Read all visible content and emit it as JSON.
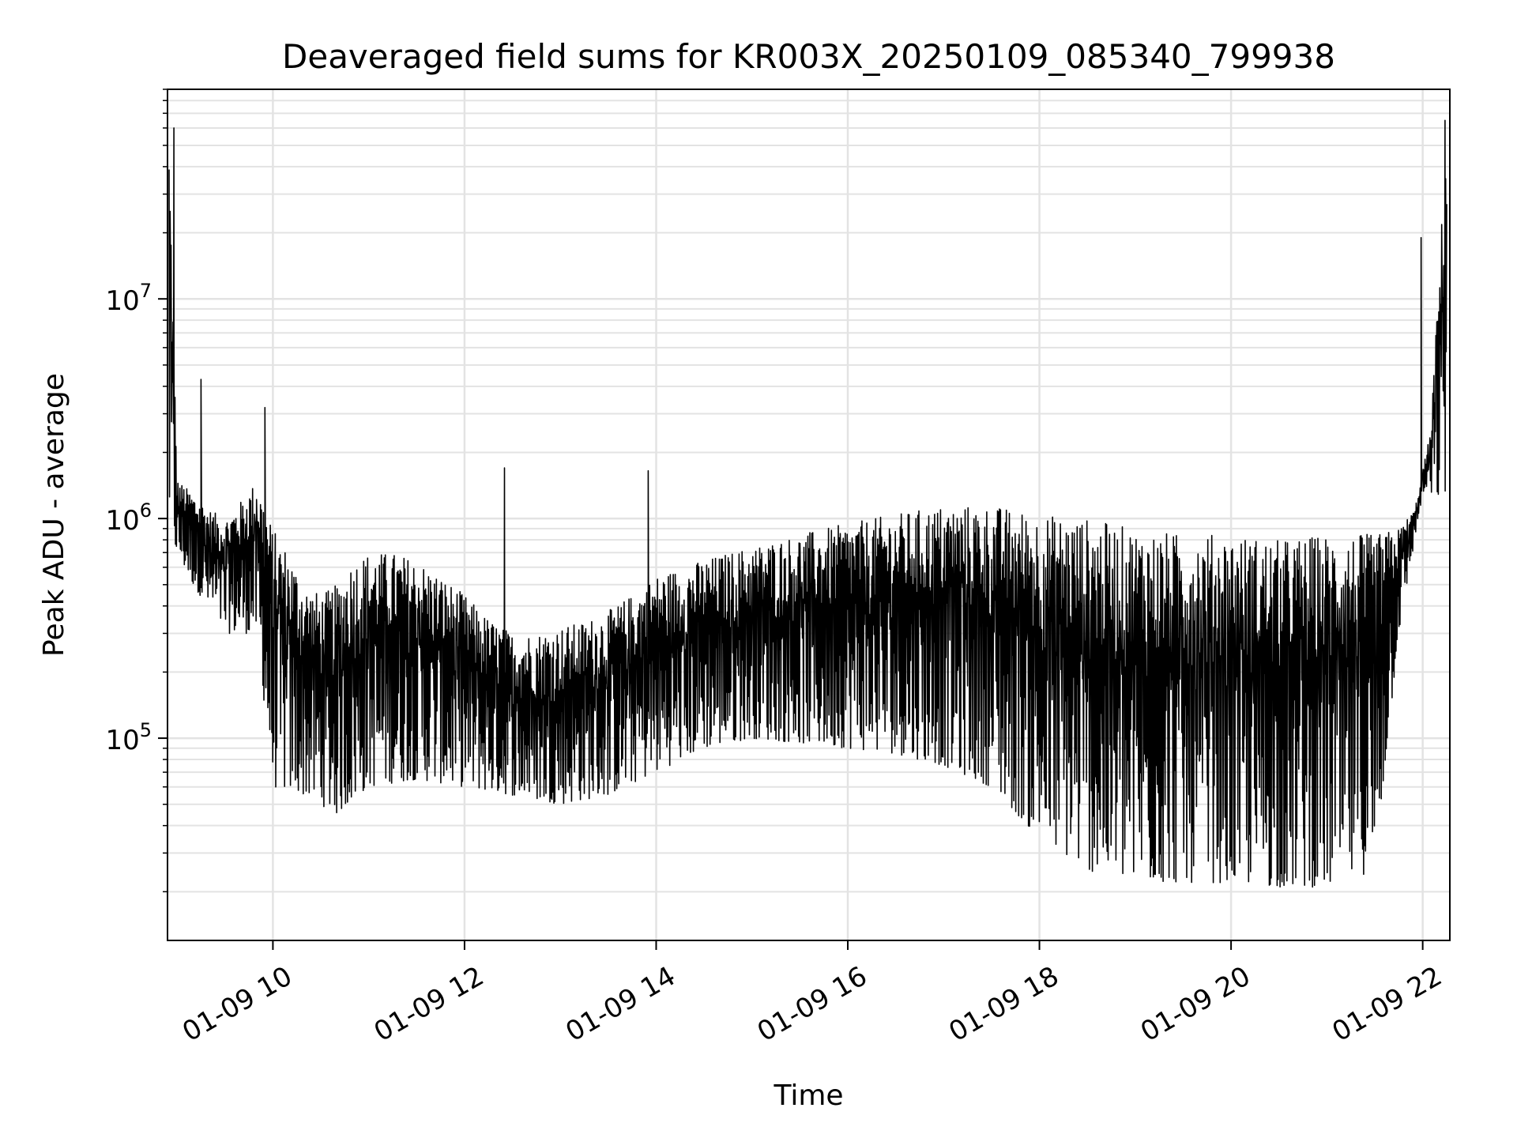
{
  "chart_data": {
    "type": "line",
    "title": "Deaveraged field sums for KR003X_20250109_085340_799938",
    "xlabel": "Time",
    "ylabel": "Peak ADU - average",
    "xscale": "time",
    "yscale": "log",
    "xlim": [
      "01-09 08:54",
      "01-09 22:17"
    ],
    "ylim": [
      12000,
      90000000
    ],
    "grid": true,
    "line_color": "#000000",
    "x_tick_labels": [
      "01-09 10",
      "01-09 12",
      "01-09 14",
      "01-09 16",
      "01-09 18",
      "01-09 20",
      "01-09 22"
    ],
    "y_tick_labels": [
      {
        "base": "10",
        "exp": "5",
        "value": 100000
      },
      {
        "base": "10",
        "exp": "6",
        "value": 1000000
      },
      {
        "base": "10",
        "exp": "7",
        "value": 10000000
      }
    ],
    "series": [
      {
        "upper_envelope": {
          "x": [
            "01-09 08:55",
            "01-09 09:00",
            "01-09 09:10",
            "01-09 09:20",
            "01-09 09:30",
            "01-09 09:40",
            "01-09 09:50",
            "01-09 10:00",
            "01-09 10:10",
            "01-09 10:20",
            "01-09 10:30",
            "01-09 10:40",
            "01-09 10:50",
            "01-09 11:00",
            "01-09 11:15",
            "01-09 11:30",
            "01-09 11:45",
            "01-09 12:00",
            "01-09 12:15",
            "01-09 12:30",
            "01-09 12:45",
            "01-09 13:00",
            "01-09 13:15",
            "01-09 13:30",
            "01-09 13:45",
            "01-09 14:00",
            "01-09 14:30",
            "01-09 15:00",
            "01-09 15:30",
            "01-09 16:00",
            "01-09 16:30",
            "01-09 17:00",
            "01-09 17:30",
            "01-09 18:00",
            "01-09 18:30",
            "01-09 19:00",
            "01-09 19:30",
            "01-09 20:00",
            "01-09 20:30",
            "01-09 21:00",
            "01-09 21:30",
            "01-09 21:45",
            "01-09 21:55",
            "01-09 22:05",
            "01-09 22:15"
          ],
          "y": [
            60000000,
            1500000,
            1300000,
            1100000,
            1000000,
            1200000,
            1500000,
            900000,
            700000,
            500000,
            450000,
            500000,
            650000,
            700000,
            700000,
            650000,
            550000,
            450000,
            350000,
            300000,
            300000,
            320000,
            340000,
            380000,
            450000,
            550000,
            650000,
            750000,
            850000,
            950000,
            1050000,
            1150000,
            1150000,
            1050000,
            1000000,
            900000,
            850000,
            850000,
            800000,
            850000,
            850000,
            900000,
            1100000,
            2500000,
            60000000
          ]
        },
        "lower_envelope": {
          "x": [
            "01-09 08:55",
            "01-09 09:10",
            "01-09 09:30",
            "01-09 09:50",
            "01-09 10:00",
            "01-09 10:20",
            "01-09 10:40",
            "01-09 11:00",
            "01-09 11:30",
            "01-09 12:00",
            "01-09 12:30",
            "01-09 13:00",
            "01-09 13:30",
            "01-09 14:00",
            "01-09 14:30",
            "01-09 15:00",
            "01-09 15:30",
            "01-09 16:00",
            "01-09 16:30",
            "01-09 17:00",
            "01-09 17:30",
            "01-09 18:00",
            "01-09 18:30",
            "01-09 19:00",
            "01-09 19:30",
            "01-09 20:00",
            "01-09 20:30",
            "01-09 21:00",
            "01-09 21:30",
            "01-09 21:45",
            "01-09 22:00",
            "01-09 22:15"
          ],
          "y": [
            800000,
            500000,
            300000,
            300000,
            60000,
            55000,
            45000,
            60000,
            65000,
            60000,
            55000,
            50000,
            55000,
            70000,
            90000,
            100000,
            95000,
            90000,
            85000,
            75000,
            60000,
            35000,
            25000,
            22000,
            22000,
            22000,
            21000,
            21000,
            25000,
            300000,
            1300000,
            1200000
          ]
        },
        "spikes": {
          "x": [
            "01-09 08:58",
            "01-09 09:15",
            "01-09 09:55",
            "01-09 12:25",
            "01-09 13:55",
            "01-09 21:59",
            "01-09 22:14"
          ],
          "y": [
            60000000,
            4300000,
            3200000,
            1700000,
            1650000,
            19000000,
            65000000
          ]
        }
      }
    ]
  }
}
